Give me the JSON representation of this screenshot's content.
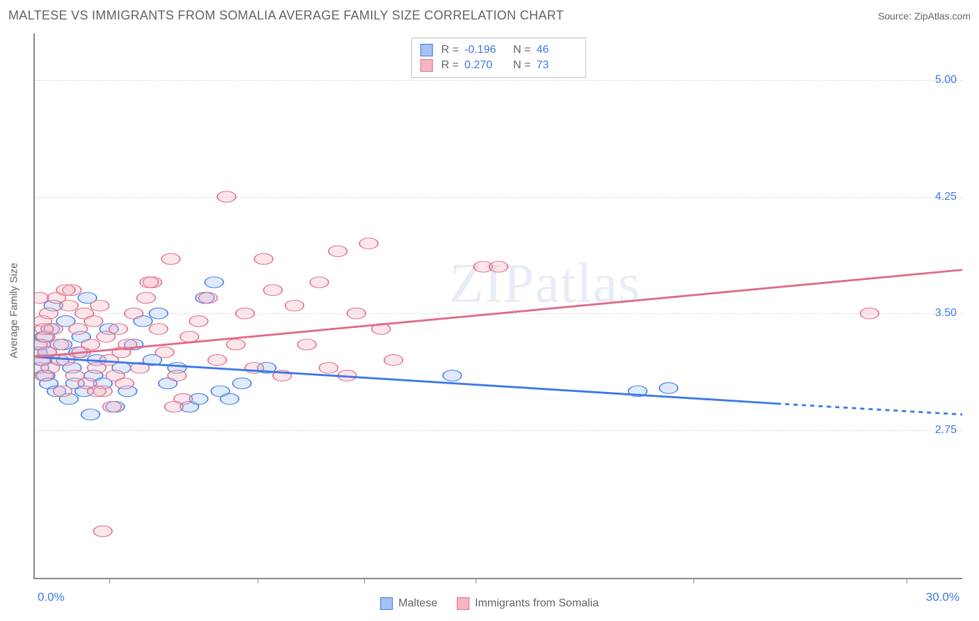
{
  "title": "MALTESE VS IMMIGRANTS FROM SOMALIA AVERAGE FAMILY SIZE CORRELATION CHART",
  "source_label": "Source: ZipAtlas.com",
  "ylabel": "Average Family Size",
  "watermark": "ZIPatlas",
  "chart": {
    "type": "scatter",
    "background_color": "#ffffff",
    "grid_color": "#dadce0",
    "grid_style": "dashed",
    "axis_color": "#888888",
    "xlim": [
      0,
      30
    ],
    "ylim": [
      1.8,
      5.3
    ],
    "x_label_min": "0.0%",
    "x_label_max": "30.0%",
    "xtick_positions_pct": [
      8,
      24,
      35.5,
      47.5,
      71,
      94
    ],
    "yticks": [
      2.75,
      3.5,
      4.25,
      5.0
    ],
    "ytick_labels": [
      "2.75",
      "3.50",
      "4.25",
      "5.00"
    ],
    "ytick_color": "#3b78e7",
    "xaxis_label_color": "#3b78e7",
    "marker_radius": 10,
    "marker_opacity": 0.35,
    "line_width": 2.2,
    "series": [
      {
        "name": "Maltese",
        "color_fill": "#a4c2f4",
        "color_stroke": "#3b78e7",
        "R": "-0.196",
        "N": "46",
        "trend": {
          "x1": 0,
          "y1": 3.22,
          "x2": 24,
          "y2": 2.92,
          "dash_after_x": 24,
          "x2_dash": 30,
          "y2_dash": 2.85
        },
        "points": [
          [
            0.1,
            3.25
          ],
          [
            0.15,
            3.15
          ],
          [
            0.2,
            3.3
          ],
          [
            0.25,
            3.2
          ],
          [
            0.3,
            3.35
          ],
          [
            0.35,
            3.1
          ],
          [
            0.4,
            3.25
          ],
          [
            0.45,
            3.05
          ],
          [
            0.5,
            3.4
          ],
          [
            0.6,
            3.55
          ],
          [
            0.7,
            3.0
          ],
          [
            0.8,
            3.2
          ],
          [
            0.9,
            3.3
          ],
          [
            1.0,
            3.45
          ],
          [
            1.1,
            2.95
          ],
          [
            1.2,
            3.15
          ],
          [
            1.3,
            3.05
          ],
          [
            1.4,
            3.25
          ],
          [
            1.5,
            3.35
          ],
          [
            1.6,
            3.0
          ],
          [
            1.7,
            3.6
          ],
          [
            1.8,
            2.85
          ],
          [
            1.9,
            3.1
          ],
          [
            2.0,
            3.2
          ],
          [
            2.2,
            3.05
          ],
          [
            2.4,
            3.4
          ],
          [
            2.6,
            2.9
          ],
          [
            2.8,
            3.15
          ],
          [
            3.0,
            3.0
          ],
          [
            3.2,
            3.3
          ],
          [
            3.5,
            3.45
          ],
          [
            3.8,
            3.2
          ],
          [
            4.0,
            3.5
          ],
          [
            4.3,
            3.05
          ],
          [
            4.6,
            3.15
          ],
          [
            5.0,
            2.9
          ],
          [
            5.3,
            2.95
          ],
          [
            5.5,
            3.6
          ],
          [
            5.8,
            3.7
          ],
          [
            6.0,
            3.0
          ],
          [
            6.3,
            2.95
          ],
          [
            6.7,
            3.05
          ],
          [
            7.5,
            3.15
          ],
          [
            13.5,
            3.1
          ],
          [
            19.5,
            3.0
          ],
          [
            20.5,
            3.02
          ]
        ]
      },
      {
        "name": "Immigrants from Somalia",
        "color_fill": "#f4b6c2",
        "color_stroke": "#e06b87",
        "R": "0.270",
        "N": "73",
        "trend": {
          "x1": 0,
          "y1": 3.22,
          "x2": 30,
          "y2": 3.78
        },
        "points": [
          [
            0.1,
            3.3
          ],
          [
            0.15,
            3.6
          ],
          [
            0.2,
            3.2
          ],
          [
            0.25,
            3.45
          ],
          [
            0.3,
            3.1
          ],
          [
            0.35,
            3.35
          ],
          [
            0.4,
            3.25
          ],
          [
            0.45,
            3.5
          ],
          [
            0.5,
            3.15
          ],
          [
            0.6,
            3.4
          ],
          [
            0.7,
            3.6
          ],
          [
            0.8,
            3.3
          ],
          [
            0.9,
            3.0
          ],
          [
            1.0,
            3.2
          ],
          [
            1.1,
            3.55
          ],
          [
            1.2,
            3.65
          ],
          [
            1.3,
            3.1
          ],
          [
            1.4,
            3.4
          ],
          [
            1.5,
            3.25
          ],
          [
            1.6,
            3.5
          ],
          [
            1.7,
            3.05
          ],
          [
            1.8,
            3.3
          ],
          [
            1.9,
            3.45
          ],
          [
            2.0,
            3.15
          ],
          [
            2.1,
            3.55
          ],
          [
            2.2,
            3.0
          ],
          [
            2.3,
            3.35
          ],
          [
            2.4,
            3.2
          ],
          [
            2.5,
            2.9
          ],
          [
            2.6,
            3.1
          ],
          [
            2.7,
            3.4
          ],
          [
            2.8,
            3.25
          ],
          [
            2.9,
            3.05
          ],
          [
            3.0,
            3.3
          ],
          [
            3.2,
            3.5
          ],
          [
            3.4,
            3.15
          ],
          [
            3.6,
            3.6
          ],
          [
            3.8,
            3.7
          ],
          [
            4.0,
            3.4
          ],
          [
            4.2,
            3.25
          ],
          [
            4.4,
            3.85
          ],
          [
            4.6,
            3.1
          ],
          [
            4.8,
            2.95
          ],
          [
            5.0,
            3.35
          ],
          [
            5.3,
            3.45
          ],
          [
            5.6,
            3.6
          ],
          [
            5.9,
            3.2
          ],
          [
            6.2,
            4.25
          ],
          [
            6.5,
            3.3
          ],
          [
            6.8,
            3.5
          ],
          [
            7.1,
            3.15
          ],
          [
            7.4,
            3.85
          ],
          [
            7.7,
            3.65
          ],
          [
            8.0,
            3.1
          ],
          [
            8.4,
            3.55
          ],
          [
            8.8,
            3.3
          ],
          [
            9.2,
            3.7
          ],
          [
            9.5,
            3.15
          ],
          [
            9.8,
            3.9
          ],
          [
            10.1,
            3.1
          ],
          [
            10.4,
            3.5
          ],
          [
            10.8,
            3.95
          ],
          [
            11.2,
            3.4
          ],
          [
            11.6,
            3.2
          ],
          [
            14.5,
            3.8
          ],
          [
            15.0,
            3.8
          ],
          [
            2.2,
            2.1
          ],
          [
            27.0,
            3.5
          ],
          [
            3.7,
            3.7
          ],
          [
            1.0,
            3.65
          ],
          [
            0.3,
            3.4
          ],
          [
            2.0,
            3.0
          ],
          [
            4.5,
            2.9
          ]
        ]
      }
    ]
  },
  "legend_bottom": [
    {
      "label": "Maltese",
      "fill": "#a4c2f4",
      "stroke": "#3b78e7"
    },
    {
      "label": "Immigrants from Somalia",
      "fill": "#f4b6c2",
      "stroke": "#e06b87"
    }
  ]
}
